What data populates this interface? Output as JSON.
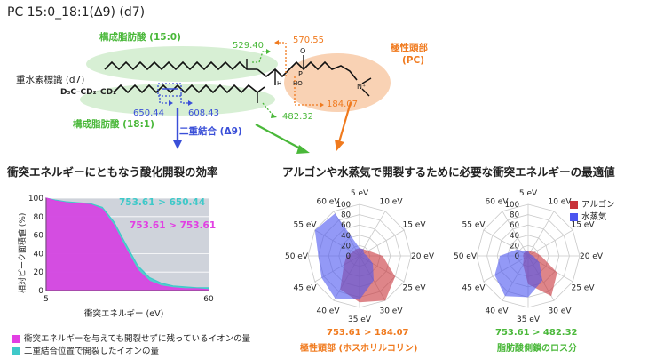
{
  "title": "PC 15:0_18:1(Δ9) (d7)",
  "molecule": {
    "fa15_label": "構成脂肪酸 (15:0)",
    "fa18_label": "構成脂肪酸 (18:1)",
    "deuterium_label": "重水素標識 (d7)",
    "deuterium_formula": "D₃C–CD₂–CD₂",
    "headgroup_label": "極性頭部",
    "headgroup_sub": "(PC)",
    "double_bond_label": "二重結合 (Δ9)",
    "fragments": {
      "f529": "529.40",
      "f570": "570.55",
      "f184": "184.07",
      "f482": "482.32",
      "f650": "650.44",
      "f608": "608.43"
    },
    "colors": {
      "green": "#4ab83a",
      "orange": "#f07a1e",
      "blue": "#3a4fd8"
    }
  },
  "left_section": {
    "heading": "衝突エネルギーにともなう酸化開裂の効率",
    "ylabel": "相対ピーク面積値 (%)",
    "xlabel": "衝突エネルギー (eV)",
    "legend": [
      {
        "label": "衝突エネルギーを与えても開裂せずに残っているイオンの量",
        "color": "#e23fe3"
      },
      {
        "label": "二重結合位置で開裂したイオンの量",
        "color": "#3fc9c9"
      }
    ]
  },
  "right_section": {
    "heading": "アルゴンや水蒸気で開裂するために必要な衝突エネルギーの最適値",
    "legend": [
      {
        "label": "アルゴン",
        "color": "#c8333a"
      },
      {
        "label": "水蒸気",
        "color": "#4b55f0"
      }
    ],
    "radar1_caption_line1": "753.61 > 184.07",
    "radar1_caption_line2": "極性頭部 (ホスホリルコリン)",
    "radar2_caption_line1": "753.61 > 482.32",
    "radar2_caption_line2": "脂肪酸側鎖のロス分"
  },
  "chart_data": [
    {
      "type": "area",
      "title": "衝突エネルギーにともなう酸化開裂の効率",
      "xlabel": "衝突エネルギー (eV)",
      "ylabel": "相対ピーク面積値 (%)",
      "xlim": [
        5,
        60
      ],
      "ylim": [
        0,
        100
      ],
      "yticks": [
        0,
        20,
        40,
        60,
        80,
        100
      ],
      "xticks": [
        5,
        60
      ],
      "x": [
        5,
        8,
        12,
        16,
        20,
        24,
        28,
        32,
        36,
        40,
        44,
        48,
        52,
        56,
        60
      ],
      "series": [
        {
          "name": "753.61 > 753.61",
          "color": "#e23fe3",
          "values": [
            100,
            97,
            95,
            94,
            93,
            88,
            70,
            45,
            22,
            10,
            5,
            3,
            2,
            2,
            1
          ]
        },
        {
          "name": "753.61 > 650.44",
          "color": "#3fc9c9",
          "values": [
            100,
            98,
            96,
            95,
            94,
            90,
            74,
            50,
            27,
            14,
            8,
            5,
            4,
            3,
            3
          ]
        }
      ]
    },
    {
      "type": "radar",
      "caption": "753.61 > 184.07",
      "axes": [
        "5 eV",
        "10 eV",
        "15 eV",
        "20 eV",
        "25 eV",
        "30 eV",
        "35 eV",
        "40 eV",
        "45 eV",
        "50 eV",
        "55 eV",
        "60 eV"
      ],
      "rticks": [
        0,
        20,
        40,
        60,
        80,
        100
      ],
      "series": [
        {
          "name": "アルゴン",
          "color": "#c8333a",
          "values": [
            15,
            15,
            20,
            45,
            80,
            100,
            90,
            75,
            35,
            25,
            15,
            15
          ]
        },
        {
          "name": "水蒸気",
          "color": "#4b55f0",
          "values": [
            15,
            15,
            10,
            15,
            30,
            55,
            85,
            95,
            85,
            80,
            100,
            95
          ]
        }
      ]
    },
    {
      "type": "radar",
      "caption": "753.61 > 482.32",
      "axes": [
        "5 eV",
        "10 eV",
        "15 eV",
        "20 eV",
        "25 eV",
        "30 eV",
        "35 eV",
        "40 eV",
        "45 eV",
        "50 eV",
        "55 eV",
        "60 eV"
      ],
      "rticks": [
        0,
        20,
        40,
        60,
        80,
        100
      ],
      "series": [
        {
          "name": "アルゴン",
          "color": "#c8333a",
          "values": [
            10,
            10,
            15,
            25,
            65,
            90,
            55,
            20,
            10,
            10,
            10,
            10
          ]
        },
        {
          "name": "水蒸気",
          "color": "#4b55f0",
          "values": [
            10,
            5,
            5,
            10,
            25,
            55,
            80,
            90,
            75,
            55,
            25,
            10
          ]
        }
      ]
    }
  ]
}
